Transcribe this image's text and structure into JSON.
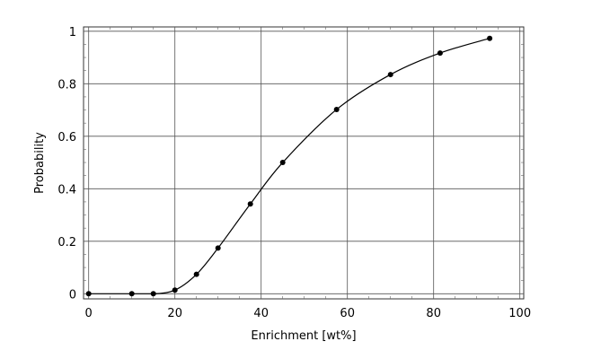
{
  "chart_data": {
    "type": "line",
    "title": "",
    "xlabel": "Enrichment [wt%]",
    "ylabel": "Probability",
    "xlim": [
      0,
      100
    ],
    "ylim": [
      0,
      1
    ],
    "xticks": [
      "0",
      "20",
      "40",
      "60",
      "80",
      "100"
    ],
    "yticks": [
      "0",
      "0.2",
      "0.4",
      "0.6",
      "0.8",
      "1"
    ],
    "grid": true,
    "markers": "filled circles with smooth curve",
    "colors": {
      "line": "#000000",
      "grid": "#555555"
    },
    "series": [
      {
        "x": [
          0,
          10,
          15,
          20,
          25,
          30,
          37.5,
          45,
          57.5,
          70,
          81.5,
          93
        ],
        "y": [
          0,
          0,
          0,
          0.014,
          0.074,
          0.174,
          0.342,
          0.5,
          0.702,
          0.835,
          0.917,
          0.973
        ]
      }
    ]
  }
}
